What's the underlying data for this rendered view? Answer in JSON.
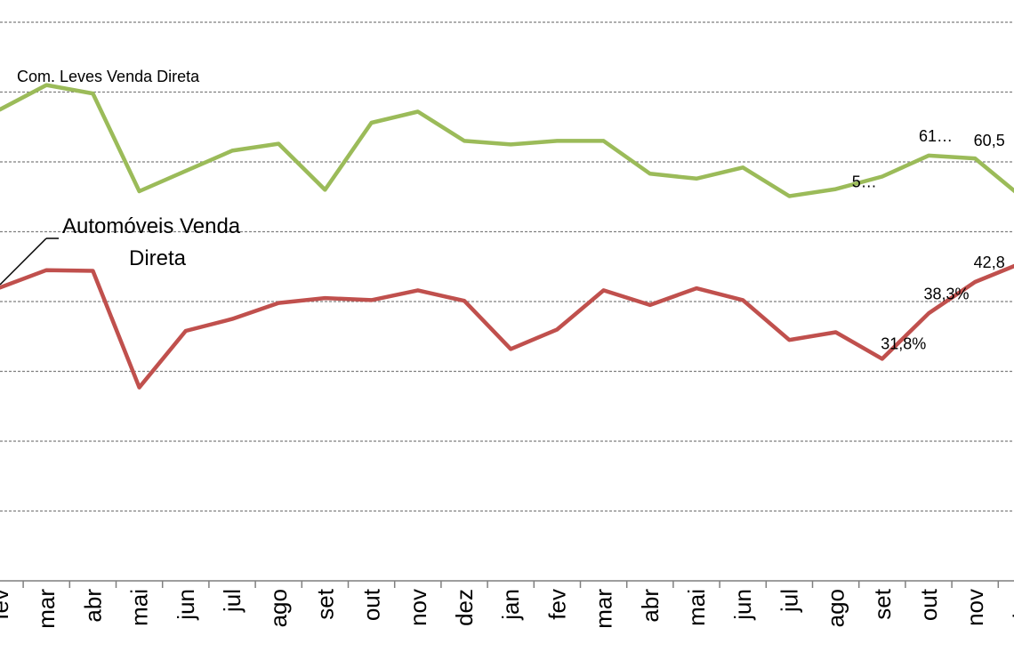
{
  "chart_data": {
    "type": "line",
    "categories": [
      "fev",
      "mar",
      "abr",
      "mai",
      "jun",
      "jul",
      "ago",
      "set",
      "out",
      "nov",
      "dez",
      "jan",
      "fev",
      "mar",
      "abr",
      "mai",
      "jun",
      "jul",
      "ago",
      "set",
      "out",
      "nov",
      "dez"
    ],
    "ylim": [
      0,
      80
    ],
    "grid": true,
    "series": [
      {
        "name": "Com. Leves Venda Direta",
        "color": "#9BBB59",
        "values": [
          67.5,
          71.0,
          69.8,
          55.8,
          58.7,
          61.6,
          62.6,
          56.0,
          65.6,
          67.2,
          63.0,
          62.5,
          63.0,
          63.0,
          58.3,
          57.6,
          59.2,
          55.1,
          56.1,
          57.9,
          60.9,
          60.5,
          55.0
        ]
      },
      {
        "name": "Automóveis Venda Direta",
        "color": "#C0504D",
        "values": [
          42.0,
          44.5,
          44.4,
          27.7,
          35.8,
          37.5,
          39.8,
          40.5,
          40.2,
          41.6,
          40.1,
          33.2,
          36.0,
          41.6,
          39.5,
          41.9,
          40.2,
          34.5,
          35.6,
          31.8,
          38.3,
          42.8,
          45.5
        ]
      }
    ],
    "data_labels": [
      {
        "series": 0,
        "index": 19,
        "text": "5…"
      },
      {
        "series": 0,
        "index": 20,
        "text": "61…"
      },
      {
        "series": 0,
        "index": 21,
        "text": "60,5"
      },
      {
        "series": 1,
        "index": 19,
        "text": "31,8%"
      },
      {
        "series": 1,
        "index": 20,
        "text": "38,3%"
      },
      {
        "series": 1,
        "index": 21,
        "text": "42,8"
      }
    ],
    "series_labels": {
      "green": "Com. Leves Venda Direta",
      "red_line1": "Automóveis Venda",
      "red_line2": "Direta"
    }
  }
}
